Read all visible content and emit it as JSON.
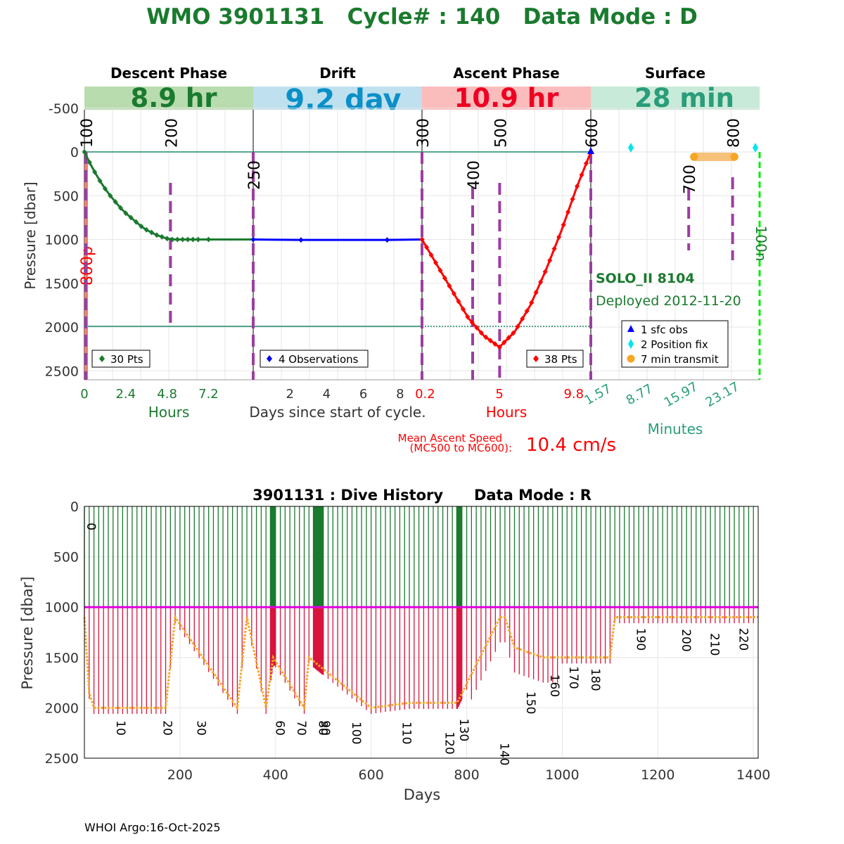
{
  "colors": {
    "green": "#1a7a2e",
    "blue": "#0000ff",
    "red": "#ff0000",
    "magenta": "#e000e0",
    "orange": "#f6a623",
    "purple": "#9b3ea0",
    "teal": "#2a9d7a",
    "lime": "#00ee00",
    "cyan": "#00e5ee",
    "descent_band": "#b8dcae",
    "drift_band": "#bfe0ee",
    "ascent_band": "#fbbcbc",
    "surface_band": "#c8ead8",
    "drift_band_text": "#0a8fc8"
  },
  "header": {
    "title": "WMO 3901131   Cycle# : 140   Data Mode : D"
  },
  "top_chart": {
    "phases": [
      {
        "name": "Descent Phase",
        "duration": "8.9 hr"
      },
      {
        "name": "Drift",
        "duration": "9.2 day"
      },
      {
        "name": "Ascent Phase",
        "duration": "10.9 hr"
      },
      {
        "name": "Surface",
        "duration": "28 min"
      }
    ],
    "ylabel": "Pressure [dbar]",
    "yticks": [
      "-500",
      "0",
      "500",
      "1000",
      "1500",
      "2000",
      "2500"
    ],
    "ytick_values": [
      -500,
      0,
      500,
      1000,
      1500,
      2000,
      2500
    ],
    "ylim": [
      -750,
      2600
    ],
    "descent_xticks": [
      "0",
      "2.4",
      "4.8",
      "7.2"
    ],
    "descent_xticks_values": [
      0,
      2.4,
      4.8,
      7.2
    ],
    "drift_xticks": [
      "2",
      "4",
      "6",
      "8"
    ],
    "drift_xticks_values": [
      2,
      4,
      6,
      8
    ],
    "ascent_xticks": [
      "0.2",
      "5",
      "9.8"
    ],
    "surface_xticks": [
      "1.57",
      "8.77",
      "15.97",
      "23.17"
    ],
    "xlabel_hours_left": "Hours",
    "xlabel_center": "Days since start of cycle.",
    "xlabel_hours_right": "Hours",
    "xlabel_minutes": "Minutes",
    "mission_codes": [
      {
        "label": "100",
        "panel": 0,
        "x": 0.0
      },
      {
        "label": "200",
        "panel": 0,
        "x": 0.51
      },
      {
        "label": "250",
        "panel": 1,
        "x": 0.0
      },
      {
        "label": "300",
        "panel": 2,
        "x": 0.0
      },
      {
        "label": "400",
        "panel": 2,
        "x": 0.3
      },
      {
        "label": "500",
        "panel": 2,
        "x": 0.46
      },
      {
        "label": "600",
        "panel": 3,
        "x": 0.0
      },
      {
        "label": "700",
        "panel": 3,
        "x": 0.58
      },
      {
        "label": "800",
        "panel": 3,
        "x": 0.84
      }
    ],
    "red_side_label": "800p",
    "green_side_label": "100n",
    "float_name": "SOLO_II 8104",
    "deployed": "Deployed 2012-11-20",
    "descent_legend": "30 Pts",
    "drift_legend": "4 Observations",
    "ascent_legend": "38 Pts",
    "surface_legend": [
      "1 sfc obs",
      "2 Position fix",
      "7 min transmit"
    ],
    "ascent_speed_label_1": "Mean Ascent Speed",
    "ascent_speed_label_2": "(MC500 to MC600):",
    "ascent_speed_value": "10.4 cm/s"
  },
  "bottom_chart": {
    "title": "3901131 : Dive History      Data Mode : R",
    "xlabel": "Days",
    "ylabel": "Pressure [dbar]",
    "xticks": [
      "200",
      "400",
      "600",
      "800",
      "1000",
      "1200",
      "1400"
    ],
    "xtick_values": [
      200,
      400,
      600,
      800,
      1000,
      1200,
      1400
    ],
    "yticks": [
      "0",
      "500",
      "1000",
      "1500",
      "2000",
      "2500"
    ],
    "ytick_values": [
      0,
      500,
      1000,
      1500,
      2000,
      2500
    ],
    "xlim": [
      0,
      1410
    ],
    "ylim": [
      0,
      2500
    ],
    "cycle_labels": [
      {
        "label": "0",
        "day": 0,
        "p": 200
      },
      {
        "label": "10",
        "day": 62,
        "p": 2200
      },
      {
        "label": "20",
        "day": 160,
        "p": 2200
      },
      {
        "label": "30",
        "day": 230,
        "p": 2200
      },
      {
        "label": "60",
        "day": 395,
        "p": 2200
      },
      {
        "label": "70",
        "day": 440,
        "p": 2200
      },
      {
        "label": "80",
        "day": 485,
        "p": 2200
      },
      {
        "label": "90",
        "day": 490,
        "p": 2200
      },
      {
        "label": "100",
        "day": 555,
        "p": 2250
      },
      {
        "label": "110",
        "day": 660,
        "p": 2250
      },
      {
        "label": "120",
        "day": 750,
        "p": 2350
      },
      {
        "label": "130",
        "day": 780,
        "p": 2220
      },
      {
        "label": "140",
        "day": 865,
        "p": 2460
      },
      {
        "label": "150",
        "day": 920,
        "p": 1950
      },
      {
        "label": "160",
        "day": 970,
        "p": 1780
      },
      {
        "label": "170",
        "day": 1010,
        "p": 1700
      },
      {
        "label": "180",
        "day": 1055,
        "p": 1720
      },
      {
        "label": "190",
        "day": 1150,
        "p": 1320
      },
      {
        "label": "200",
        "day": 1245,
        "p": 1330
      },
      {
        "label": "210",
        "day": 1305,
        "p": 1370
      },
      {
        "label": "220",
        "day": 1365,
        "p": 1320
      }
    ]
  },
  "footer": {
    "credit": "WHOI Argo:16-Oct-2025"
  },
  "chart_data": [
    {
      "type": "line",
      "title": "WMO 3901131   Cycle# : 140   Data Mode : D",
      "ylabel": "Pressure [dbar]",
      "ylim": [
        -750,
        2600
      ],
      "series": [
        {
          "name": "Descent (30 Pts)",
          "x_hours": [
            0,
            0.3,
            0.6,
            0.9,
            1.2,
            1.5,
            1.8,
            2.1,
            2.4,
            2.7,
            3.0,
            3.3,
            3.6,
            3.9,
            4.2,
            4.5,
            4.8,
            5.1,
            5.4,
            5.7,
            6.0,
            6.3,
            6.6,
            7.2
          ],
          "pressure": [
            0,
            120,
            230,
            330,
            420,
            500,
            570,
            640,
            700,
            750,
            800,
            850,
            890,
            920,
            950,
            970,
            990,
            1000,
            1000,
            1000,
            1000,
            1000,
            1000,
            1000
          ]
        },
        {
          "name": "Drift (4 Observations)",
          "x_days": [
            0,
            2.6,
            7.3,
            9.2
          ],
          "pressure": [
            1000,
            1005,
            1005,
            1000
          ]
        },
        {
          "name": "Ascent (38 Pts)",
          "x_hours": [
            0,
            1,
            2,
            3,
            4,
            5,
            6,
            7,
            8,
            9,
            10,
            10.9
          ],
          "pressure": [
            1000,
            1300,
            1600,
            1900,
            2100,
            2230,
            2050,
            1750,
            1350,
            900,
            400,
            0
          ]
        }
      ]
    },
    {
      "type": "line",
      "title": "3901131 : Dive History      Data Mode : R",
      "xlabel": "Days",
      "ylabel": "Pressure [dbar]",
      "xlim": [
        0,
        1410
      ],
      "ylim": [
        0,
        2500
      ],
      "series": [
        {
          "name": "Park pressure (orange)",
          "x": [
            0,
            10,
            20,
            170,
            190,
            320,
            340,
            380,
            395,
            460,
            470,
            600,
            680,
            780,
            870,
            880,
            900,
            960,
            1000,
            1100,
            1110,
            1190,
            1260,
            1380,
            1410
          ],
          "y": [
            1100,
            1850,
            2000,
            2000,
            1100,
            2000,
            1100,
            2000,
            1500,
            2000,
            1500,
            2000,
            1950,
            1950,
            1100,
            1100,
            1400,
            1500,
            1500,
            1500,
            1100,
            1100,
            1100,
            1100,
            1100
          ]
        },
        {
          "name": "Drift pressure (magenta)",
          "x": [
            0,
            1410
          ],
          "y": [
            1000,
            1000
          ]
        }
      ]
    }
  ]
}
